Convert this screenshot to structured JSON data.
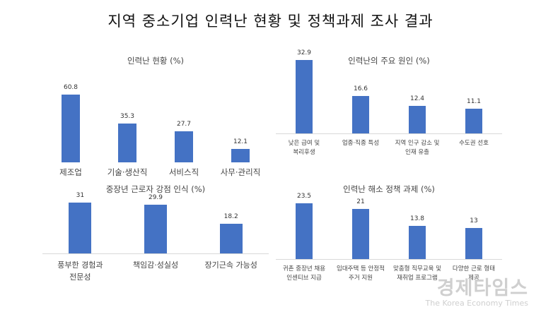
{
  "title": "지역 중소기업 인력난 현황 및 정책과제 조사 결과",
  "chart_data": [
    {
      "type": "bar",
      "title": "인력난 현황 (%)",
      "categories": [
        "제조업",
        "기술·생산직",
        "서비스직",
        "사무·관리직"
      ],
      "values": [
        60.8,
        35.3,
        27.7,
        12.1
      ],
      "value_labels": [
        "60.8",
        "35.3",
        "27.7",
        "12.1"
      ],
      "ylim": [
        0,
        70
      ],
      "grid": false,
      "legend": "none",
      "color": "#4472c4"
    },
    {
      "type": "bar",
      "title": "인력난의 주요 원인 (%)",
      "categories": [
        "낮은 급여 및\n복리후생",
        "업종·직종 특성",
        "지역 인구 감소 및\n인재 유출",
        "수도권 선호"
      ],
      "values": [
        32.9,
        16.6,
        12.4,
        11.1
      ],
      "value_labels": [
        "32.9",
        "16.6",
        "12.4",
        "11.1"
      ],
      "ylim": [
        0,
        35
      ],
      "grid": false,
      "legend": "none",
      "color": "#4472c4"
    },
    {
      "type": "bar",
      "title": "중장년 근로자 강점 인식 (%)",
      "categories": [
        "풍부한 경험과\n전문성",
        "책임감·성실성",
        "장기근속 가능성"
      ],
      "values": [
        31,
        29.9,
        18.2
      ],
      "value_labels": [
        "31",
        "29.9",
        "18.2"
      ],
      "ylim": [
        0,
        35
      ],
      "grid": false,
      "legend": "none",
      "color": "#4472c4"
    },
    {
      "type": "bar",
      "title": "인력난 해소 정책 과제 (%)",
      "categories": [
        "귀촌 중장년 채용\n인센티브 지급",
        "임대주택 등 안정적\n주거 지원",
        "맞춤형 직무교육 및\n재취업 프로그램",
        "다양한 근로 형태\n제공"
      ],
      "values": [
        23.5,
        21,
        13.8,
        13
      ],
      "value_labels": [
        "23.5",
        "21",
        "13.8",
        "13"
      ],
      "ylim": [
        0,
        27
      ],
      "grid": false,
      "legend": "none",
      "color": "#4472c4"
    }
  ],
  "watermark": {
    "korean": "경제타임스",
    "english": "The Korea Economy Times"
  }
}
